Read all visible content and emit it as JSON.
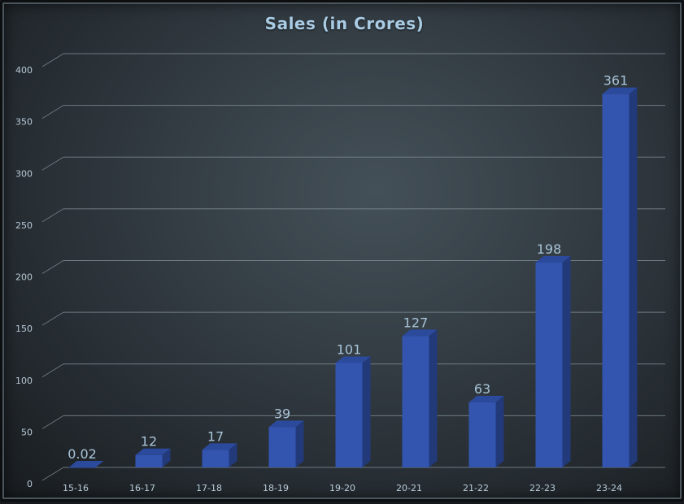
{
  "chart_data": {
    "type": "bar",
    "title": "Sales (in Crores)",
    "xlabel": "",
    "ylabel": "",
    "categories": [
      "15-16",
      "16-17",
      "17-18",
      "18-19",
      "19-20",
      "20-21",
      "21-22",
      "22-23",
      "23-24"
    ],
    "values": [
      0.02,
      12,
      17,
      39,
      101,
      127,
      63,
      198,
      361
    ],
    "data_labels": [
      "0.02",
      "12",
      "17",
      "39",
      "101",
      "127",
      "63",
      "198",
      "361"
    ],
    "ylim": [
      0,
      400
    ],
    "yticks": [
      0,
      50,
      100,
      150,
      200,
      250,
      300,
      350,
      400
    ],
    "grid": true,
    "legend": "none",
    "style": "3d-column",
    "colors": {
      "bar_front": "#3355b0",
      "bar_side": "#22397a",
      "bar_top": "#2c4a9c",
      "gridline": "#7f8c93",
      "title": "#a9cbe3",
      "label": "#b8cbd8",
      "data_label": "#a9c4d8"
    }
  }
}
